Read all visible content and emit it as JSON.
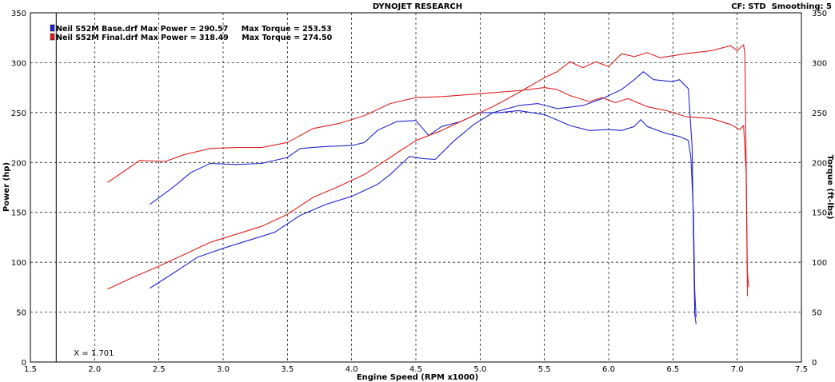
{
  "chart_data": {
    "type": "line",
    "title": "DYNOJET RESEARCH",
    "settings_label": "CF: STD  Smoothing: 5",
    "xlabel": "Engine Speed (RPM x1000)",
    "ylabel_left": "Power (hp)",
    "ylabel_right": "Torque (ft-lbs)",
    "xlim": [
      1.5,
      7.5
    ],
    "ylim": [
      0,
      350
    ],
    "x_ticks": [
      "1.5",
      "2.0",
      "2.5",
      "3.0",
      "3.5",
      "4.0",
      "4.5",
      "5.0",
      "5.5",
      "6.0",
      "6.5",
      "7.0",
      "7.5"
    ],
    "y_ticks_left": [
      "0",
      "50",
      "100",
      "150",
      "200",
      "250",
      "300",
      "350"
    ],
    "y_ticks_right": [
      "0",
      "50",
      "100",
      "150",
      "200",
      "250",
      "300",
      "350"
    ],
    "cursor": {
      "x": 1.701,
      "label": "X = 1.701"
    },
    "grid": true,
    "legend_position": "top-left",
    "series": [
      {
        "name": "Neil S52M Base.drf Max Power = 290.57     Max Torque = 253.53",
        "color": "#2424cc",
        "power": [
          [
            2.43,
            74
          ],
          [
            2.6,
            88
          ],
          [
            2.8,
            105
          ],
          [
            3.0,
            114
          ],
          [
            3.2,
            122
          ],
          [
            3.4,
            130
          ],
          [
            3.6,
            147
          ],
          [
            3.8,
            158
          ],
          [
            4.0,
            166
          ],
          [
            4.2,
            178
          ],
          [
            4.3,
            188
          ],
          [
            4.45,
            206
          ],
          [
            4.55,
            204
          ],
          [
            4.65,
            203
          ],
          [
            4.8,
            222
          ],
          [
            4.95,
            238
          ],
          [
            5.1,
            250
          ],
          [
            5.3,
            257
          ],
          [
            5.45,
            259
          ],
          [
            5.6,
            254
          ],
          [
            5.8,
            257
          ],
          [
            5.95,
            264
          ],
          [
            6.1,
            273
          ],
          [
            6.2,
            283
          ],
          [
            6.27,
            291
          ],
          [
            6.35,
            283
          ],
          [
            6.5,
            281
          ],
          [
            6.55,
            283
          ],
          [
            6.62,
            274
          ],
          [
            6.65,
            215
          ],
          [
            6.66,
            130
          ],
          [
            6.67,
            48
          ],
          [
            6.68,
            38
          ]
        ],
        "torque": [
          [
            2.43,
            158
          ],
          [
            2.6,
            174
          ],
          [
            2.75,
            190
          ],
          [
            2.9,
            199
          ],
          [
            3.1,
            198
          ],
          [
            3.3,
            199
          ],
          [
            3.5,
            205
          ],
          [
            3.6,
            214
          ],
          [
            3.8,
            216
          ],
          [
            4.0,
            217
          ],
          [
            4.1,
            220
          ],
          [
            4.2,
            232
          ],
          [
            4.35,
            241
          ],
          [
            4.5,
            242
          ],
          [
            4.6,
            227
          ],
          [
            4.7,
            236
          ],
          [
            4.85,
            241
          ],
          [
            5.0,
            250
          ],
          [
            5.15,
            250
          ],
          [
            5.3,
            252
          ],
          [
            5.5,
            248
          ],
          [
            5.7,
            237
          ],
          [
            5.85,
            232
          ],
          [
            6.0,
            233
          ],
          [
            6.1,
            232
          ],
          [
            6.2,
            236
          ],
          [
            6.25,
            243
          ],
          [
            6.3,
            236
          ],
          [
            6.45,
            229
          ],
          [
            6.55,
            226
          ],
          [
            6.62,
            222
          ],
          [
            6.64,
            205
          ],
          [
            6.66,
            150
          ],
          [
            6.67,
            72
          ],
          [
            6.68,
            45
          ]
        ]
      },
      {
        "name": "Neil S52M Final.drf Max Power = 318.49     Max Torque = 274.50",
        "color": "#dd2020",
        "power": [
          [
            2.1,
            73
          ],
          [
            2.3,
            85
          ],
          [
            2.5,
            96
          ],
          [
            2.7,
            108
          ],
          [
            2.9,
            120
          ],
          [
            3.1,
            128
          ],
          [
            3.3,
            136
          ],
          [
            3.5,
            148
          ],
          [
            3.7,
            165
          ],
          [
            3.9,
            176
          ],
          [
            4.1,
            188
          ],
          [
            4.3,
            205
          ],
          [
            4.5,
            222
          ],
          [
            4.7,
            232
          ],
          [
            4.9,
            244
          ],
          [
            5.1,
            256
          ],
          [
            5.3,
            270
          ],
          [
            5.5,
            285
          ],
          [
            5.6,
            291
          ],
          [
            5.7,
            301
          ],
          [
            5.8,
            295
          ],
          [
            5.9,
            301
          ],
          [
            6.0,
            296
          ],
          [
            6.1,
            309
          ],
          [
            6.2,
            306
          ],
          [
            6.3,
            310
          ],
          [
            6.4,
            305
          ],
          [
            6.6,
            309
          ],
          [
            6.8,
            312
          ],
          [
            6.95,
            317
          ],
          [
            7.0,
            312
          ],
          [
            7.05,
            318
          ],
          [
            7.06,
            309
          ],
          [
            7.07,
            200
          ],
          [
            7.08,
            66
          ]
        ],
        "torque": [
          [
            2.1,
            180
          ],
          [
            2.25,
            193
          ],
          [
            2.35,
            202
          ],
          [
            2.55,
            201
          ],
          [
            2.7,
            208
          ],
          [
            2.9,
            214
          ],
          [
            3.1,
            215
          ],
          [
            3.3,
            215
          ],
          [
            3.5,
            220
          ],
          [
            3.7,
            234
          ],
          [
            3.9,
            239
          ],
          [
            4.1,
            247
          ],
          [
            4.3,
            259
          ],
          [
            4.5,
            265
          ],
          [
            4.7,
            266
          ],
          [
            4.9,
            268
          ],
          [
            5.1,
            270
          ],
          [
            5.3,
            272
          ],
          [
            5.5,
            275
          ],
          [
            5.6,
            273
          ],
          [
            5.7,
            267
          ],
          [
            5.85,
            261
          ],
          [
            5.95,
            265
          ],
          [
            6.05,
            260
          ],
          [
            6.15,
            264
          ],
          [
            6.3,
            256
          ],
          [
            6.45,
            252
          ],
          [
            6.6,
            246
          ],
          [
            6.8,
            244
          ],
          [
            6.95,
            238
          ],
          [
            7.02,
            233
          ],
          [
            7.05,
            237
          ],
          [
            7.07,
            190
          ],
          [
            7.08,
            90
          ],
          [
            7.09,
            75
          ]
        ]
      }
    ]
  }
}
